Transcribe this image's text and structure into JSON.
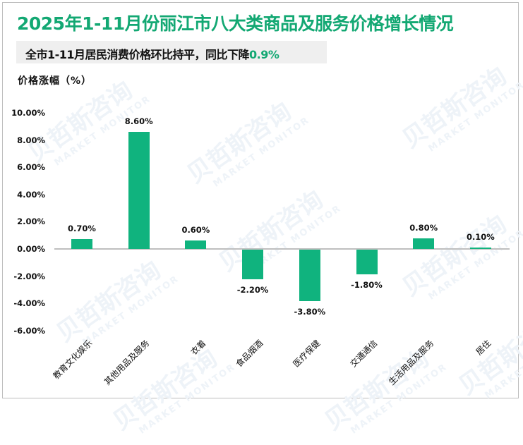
{
  "title": "2025年1-11月份丽江市八大类商品及服务价格增长情况",
  "subtitle": {
    "text": "全市1-11月居民消费价格环比持平，同比下降",
    "highlight": "0.9%"
  },
  "watermark": {
    "cn": "贝哲斯咨询",
    "en": "MARKET MONITOR"
  },
  "colors": {
    "accent": "#13a873",
    "bar": "#10b37e",
    "axis": "#bfbfbf",
    "subtitle_bg": "#efefef"
  },
  "chart_data": {
    "type": "bar",
    "title": "2025年1-11月份丽江市八大类商品及服务价格增长情况",
    "subtitle": "全市1-11月居民消费价格环比持平，同比下降0.9%",
    "xlabel": "",
    "ylabel": "价格涨幅（%）",
    "ylim": [
      -6,
      10
    ],
    "yticks": [
      "10.00%",
      "8.00%",
      "6.00%",
      "4.00%",
      "2.00%",
      "0.00%",
      "-2.00%",
      "-4.00%",
      "-6.00%"
    ],
    "grid": false,
    "legend": null,
    "categories": [
      "教育文化娱乐",
      "其他用品及服务",
      "衣着",
      "食品烟酒",
      "医疗保健",
      "交通通信",
      "生活用品及服务",
      "居住"
    ],
    "values": [
      0.7,
      8.6,
      0.6,
      -2.2,
      -3.8,
      -1.8,
      0.8,
      0.1
    ],
    "value_labels": [
      "0.70%",
      "8.60%",
      "0.60%",
      "-2.20%",
      "-3.80%",
      "-1.80%",
      "0.80%",
      "0.10%"
    ]
  }
}
